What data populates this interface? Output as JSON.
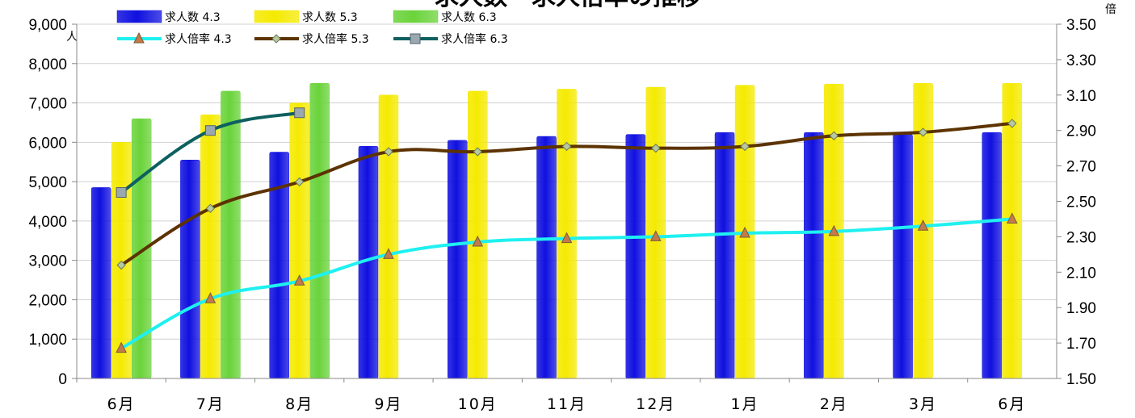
{
  "chart_data": {
    "type": "bar",
    "title": "求人数・求人倍率の推移",
    "y_left_unit": "人",
    "y_right_unit": "倍",
    "categories": [
      "6月",
      "7月",
      "8月",
      "9月",
      "10月",
      "11月",
      "12月",
      "1月",
      "2月",
      "3月",
      "6月"
    ],
    "y_left_ticks": [
      "0",
      "1,000",
      "2,000",
      "3,000",
      "4,000",
      "5,000",
      "6,000",
      "7,000",
      "8,000",
      "9,000"
    ],
    "y_right_ticks": [
      "1.50",
      "1.70",
      "1.90",
      "2.10",
      "2.30",
      "2.50",
      "2.70",
      "2.90",
      "3.10",
      "3.30",
      "3.50"
    ],
    "ylim_left": [
      0,
      9000
    ],
    "ylim_right": [
      1.5,
      3.5
    ],
    "grid": true,
    "legend_position": "top",
    "bar_series": [
      {
        "name": "求人数 4.3",
        "color": "#1010e0",
        "values": [
          4850,
          5550,
          5750,
          5900,
          6050,
          6150,
          6200,
          6250,
          6250,
          6200,
          6250
        ]
      },
      {
        "name": "求人数 5.3",
        "color": "#f5ea00",
        "values": [
          6000,
          6700,
          7000,
          7200,
          7300,
          7350,
          7400,
          7450,
          7480,
          7500,
          7500
        ]
      },
      {
        "name": "求人数 6.3",
        "color": "#6ad33a",
        "values": [
          6600,
          7300,
          7500,
          null,
          null,
          null,
          null,
          null,
          null,
          null,
          null
        ]
      }
    ],
    "line_series": [
      {
        "name": "求人倍率 4.3",
        "color": "#1ff0f0",
        "marker": "triangle",
        "values": [
          1.67,
          1.95,
          2.05,
          2.2,
          2.27,
          2.29,
          2.3,
          2.32,
          2.33,
          2.36,
          2.4
        ]
      },
      {
        "name": "求人倍率 5.3",
        "color": "#5c3300",
        "marker": "diamond",
        "values": [
          2.14,
          2.46,
          2.61,
          2.78,
          2.78,
          2.81,
          2.8,
          2.81,
          2.87,
          2.89,
          2.94
        ]
      },
      {
        "name": "求人倍率 6.3",
        "color": "#0e6060",
        "marker": "square",
        "values": [
          2.55,
          2.9,
          3.0,
          null,
          null,
          null,
          null,
          null,
          null,
          null,
          null
        ]
      }
    ]
  }
}
